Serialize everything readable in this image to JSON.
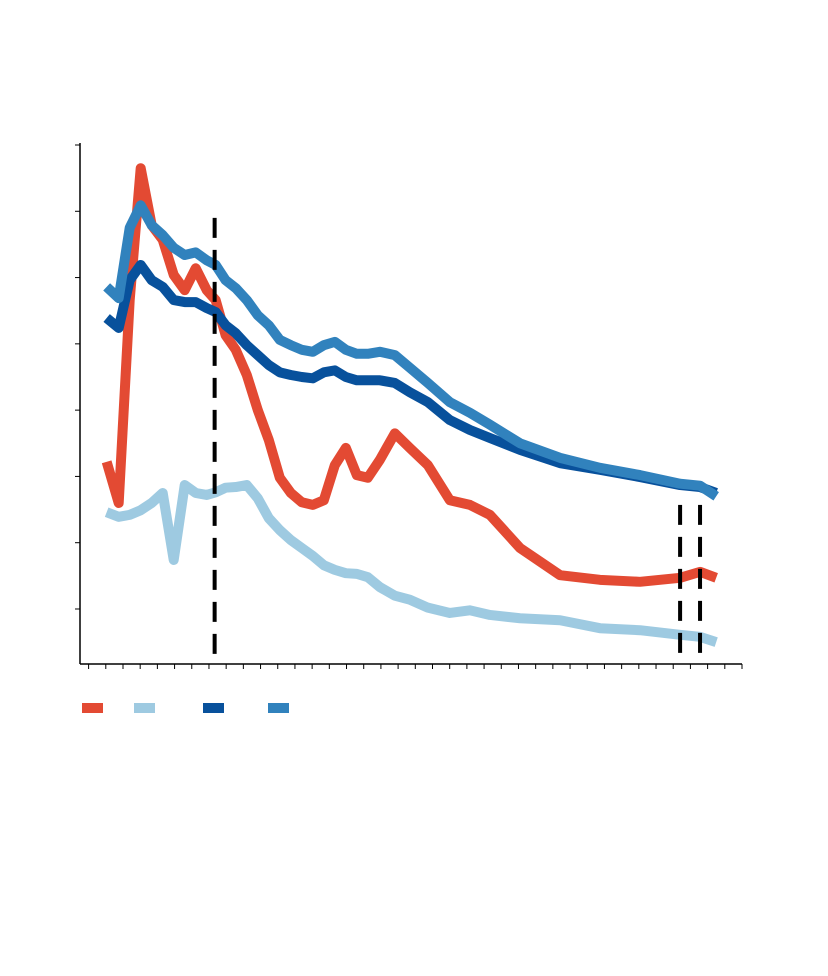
{
  "chart_data": {
    "type": "line",
    "xlim": [
      -0.5,
      38
    ],
    "xticks": [
      0,
      1,
      2,
      3,
      4,
      5,
      6,
      7,
      8,
      9,
      10,
      11,
      12,
      13,
      14,
      15,
      16,
      17,
      18,
      19,
      20,
      21,
      22,
      23,
      24,
      25,
      26,
      27,
      28,
      29,
      30,
      31,
      32,
      33,
      34,
      35,
      36,
      37,
      38
    ],
    "ylim": [
      0.17,
      8
    ],
    "yticks": [
      1,
      2,
      3,
      4,
      5,
      6,
      7,
      8
    ],
    "x": [
      1.05,
      1.75,
      2.39,
      3.03,
      3.67,
      4.31,
      4.95,
      5.59,
      6.23,
      6.87,
      7.39,
      7.97,
      8.56,
      9.2,
      9.84,
      10.48,
      11.12,
      11.76,
      12.4,
      13.04,
      13.68,
      14.32,
      14.96,
      15.6,
      16.24,
      16.94,
      17.81,
      18.68,
      19.73,
      21.01,
      22.18,
      23.34,
      25.09,
      27.42,
      29.74,
      32.07,
      34.4,
      35.56,
      36.5
    ],
    "series": [
      {
        "color": "#e34a33",
        "values": [
          3.22,
          2.6,
          5.66,
          7.65,
          6.79,
          6.57,
          6.04,
          5.81,
          6.14,
          5.81,
          5.66,
          5.13,
          4.91,
          4.53,
          4.0,
          3.55,
          2.98,
          2.75,
          2.61,
          2.57,
          2.64,
          3.17,
          3.43,
          3.02,
          2.98,
          3.25,
          3.65,
          3.43,
          3.17,
          2.64,
          2.57,
          2.42,
          1.92,
          1.51,
          1.44,
          1.41,
          1.47,
          1.56,
          1.47
        ]
      },
      {
        "color": "#9ecae1",
        "values": [
          2.46,
          2.39,
          2.42,
          2.49,
          2.6,
          2.75,
          1.74,
          2.87,
          2.75,
          2.72,
          2.76,
          2.83,
          2.84,
          2.87,
          2.67,
          2.37,
          2.19,
          2.04,
          1.92,
          1.8,
          1.66,
          1.59,
          1.54,
          1.53,
          1.48,
          1.33,
          1.2,
          1.14,
          1.02,
          0.94,
          0.98,
          0.91,
          0.86,
          0.83,
          0.71,
          0.68,
          0.61,
          0.58,
          0.5
        ]
      },
      {
        "color": "#08519c",
        "values": [
          5.39,
          5.24,
          5.96,
          6.19,
          5.96,
          5.86,
          5.66,
          5.63,
          5.63,
          5.54,
          5.48,
          5.28,
          5.16,
          4.98,
          4.83,
          4.68,
          4.57,
          4.53,
          4.5,
          4.48,
          4.57,
          4.6,
          4.5,
          4.45,
          4.45,
          4.45,
          4.41,
          4.27,
          4.12,
          3.85,
          3.7,
          3.58,
          3.4,
          3.2,
          3.1,
          2.99,
          2.87,
          2.84,
          2.75
        ]
      },
      {
        "color": "#3182bd",
        "values": [
          5.86,
          5.69,
          6.75,
          7.09,
          6.79,
          6.64,
          6.45,
          6.34,
          6.38,
          6.26,
          6.19,
          5.96,
          5.84,
          5.66,
          5.43,
          5.28,
          5.06,
          4.98,
          4.91,
          4.88,
          4.98,
          5.03,
          4.91,
          4.85,
          4.85,
          4.88,
          4.83,
          4.64,
          4.41,
          4.12,
          3.96,
          3.78,
          3.5,
          3.28,
          3.13,
          3.02,
          2.89,
          2.86,
          2.7
        ]
      }
    ],
    "vlines": [
      {
        "x": 7.33,
        "ymax": 6.9
      },
      {
        "x": 34.4,
        "ymax": 2.57
      },
      {
        "x": 35.56,
        "ymax": 2.57
      }
    ]
  }
}
